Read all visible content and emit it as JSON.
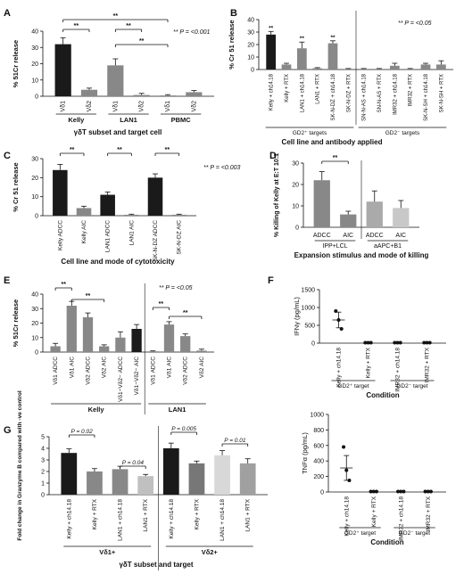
{
  "chart_data": [
    {
      "panel": "A",
      "type": "bar",
      "ylabel": "% 51Cr release",
      "ylim": [
        0,
        40
      ],
      "yticks": [
        "0",
        "10",
        "20",
        "30",
        "40"
      ],
      "categories": [
        "Vδ1",
        "Vδ2",
        "Vδ1",
        "Vδ2",
        "Vδ1",
        "Vδ2"
      ],
      "values": [
        32,
        4,
        19,
        0.8,
        0.5,
        2.5
      ],
      "errors": [
        4,
        1,
        4,
        1,
        0.5,
        1
      ],
      "colors": [
        "#1a1a1a",
        "#888888",
        "#888888",
        "#888888",
        "#888888",
        "#888888"
      ],
      "groups": [
        "Kelly",
        "LAN1",
        "PBMC"
      ],
      "sig": "**",
      "pnote": "** P = <0.001",
      "xlabel": "γδT subset and target cell"
    },
    {
      "panel": "B",
      "type": "bar",
      "ylabel": "% Cr 51 release",
      "ylim": [
        0,
        40
      ],
      "yticks": [
        "0",
        "10",
        "20",
        "30",
        "40"
      ],
      "categories": [
        "Kelly + ch14.18",
        "Kelly + RTX",
        "LAN1 + ch14.18",
        "LAN1 + RTX",
        "SK-N-DZ + ch14.18",
        "SK-N-DZ + RTX",
        "SN-N-AS + ch14.18",
        "SN-N-AS + RTX",
        "IMR32 + ch14.18",
        "IMR32 + RTX",
        "SK-N-SH + ch14.18",
        "SK-N-SH + RTX"
      ],
      "values": [
        28,
        4,
        17,
        1,
        21,
        0.5,
        0.5,
        0.5,
        3,
        0.5,
        4,
        4
      ],
      "errors": [
        2.5,
        1,
        5,
        0.5,
        2,
        0.3,
        0.3,
        0.3,
        2,
        0.3,
        1,
        3
      ],
      "colors": [
        "#1a1a1a",
        "#888888",
        "#888888",
        "#888888",
        "#888888",
        "#888888",
        "#888888",
        "#888888",
        "#888888",
        "#888888",
        "#888888",
        "#888888"
      ],
      "groups": [
        "GD2⁺ targets",
        "GD2⁻ targets"
      ],
      "sig": "**",
      "pnote": "** P = <0.05",
      "xlabel": "Cell line and antibody applied"
    },
    {
      "panel": "C",
      "type": "bar",
      "ylabel": "% Cr 51 release",
      "ylim": [
        0,
        30
      ],
      "yticks": [
        "0",
        "10",
        "20",
        "30"
      ],
      "categories": [
        "Kelly ADCC",
        "Kelly AIC",
        "LAN1 ADCC",
        "LAN1 AIC",
        "SK-N-DZ ADCC",
        "SK-N-DZ AIC"
      ],
      "values": [
        24,
        4,
        11,
        0.5,
        20,
        0.5
      ],
      "errors": [
        3,
        1,
        1.5,
        0.3,
        2,
        0.3
      ],
      "colors": [
        "#1a1a1a",
        "#888888",
        "#1a1a1a",
        "#888888",
        "#1a1a1a",
        "#888888"
      ],
      "sig": "**",
      "pnote": "** P = <0.003",
      "xlabel": "Cell line and mode of cytotoxicity"
    },
    {
      "panel": "D",
      "type": "bar",
      "ylabel": "% Killing of Kelly at E:T 10:1",
      "ylim": [
        0,
        30
      ],
      "yticks": [
        "0",
        "10",
        "20",
        "30"
      ],
      "categories": [
        "ADCC",
        "AIC",
        "ADCC",
        "AIC"
      ],
      "values": [
        22,
        6,
        12,
        9
      ],
      "errors": [
        4,
        1.5,
        5,
        3.5
      ],
      "colors": [
        "#888888",
        "#888888",
        "#aaaaaa",
        "#c8c8c8"
      ],
      "groups": [
        "IPP+LCL",
        "aAPC+B1"
      ],
      "sig": "**",
      "xlabel": "Expansion stimulus and mode of killing"
    },
    {
      "panel": "E",
      "type": "bar",
      "ylabel": "% 51Cr release",
      "ylim": [
        0,
        40
      ],
      "yticks": [
        "0",
        "10",
        "20",
        "30",
        "40"
      ],
      "categories": [
        "Vδ1 ADCC",
        "Vδ1 AIC",
        "Vδ2 ADCC",
        "Vδ2 AIC",
        "Vδ1−Vδ2− ADCC",
        "Vδ1−Vδ2− AIC",
        "Vδ1 ADCC",
        "Vδ1 AIC",
        "Vδ2 ADCC",
        "Vδ2 AIC"
      ],
      "values": [
        4,
        32,
        24,
        4,
        10,
        16,
        0.5,
        19,
        11,
        1
      ],
      "errors": [
        2,
        3,
        3,
        1,
        4,
        3,
        0.3,
        2,
        1.5,
        1
      ],
      "colors": [
        "#888888",
        "#888888",
        "#888888",
        "#888888",
        "#888888",
        "#1a1a1a",
        "#888888",
        "#888888",
        "#888888",
        "#888888"
      ],
      "groups": [
        "Kelly",
        "LAN1"
      ],
      "sig": "**",
      "pnote": "** P = <0.05"
    },
    {
      "panel": "F1",
      "type": "scatter",
      "ylabel": "IFNγ (pg/mL)",
      "ylim": [
        0,
        1500
      ],
      "yticks": [
        "0",
        "500",
        "1000",
        "1500"
      ],
      "categories": [
        "Kelly + ch14.18",
        "Kelly + RTX",
        "IMR32 + ch14.18",
        "IMR32 + RTX"
      ],
      "points": [
        [
          900,
          650,
          400
        ],
        [
          0,
          0,
          0
        ],
        [
          0,
          0,
          0
        ],
        [
          0,
          0,
          0
        ]
      ],
      "means": [
        650,
        0,
        0,
        0
      ],
      "errors": [
        220,
        0,
        0,
        0
      ],
      "groups": [
        "GD2⁺ target",
        "GD2⁻ target"
      ],
      "xlabel": "Condition"
    },
    {
      "panel": "F2",
      "type": "scatter",
      "ylabel": "TNFα (pg/mL)",
      "ylim": [
        0,
        1000
      ],
      "yticks": [
        "0",
        "200",
        "400",
        "600",
        "800",
        "1000"
      ],
      "categories": [
        "Kelly + ch14.18",
        "Kelly + RTX",
        "IMR32 + ch14.18",
        "IMR32 + RTX"
      ],
      "points": [
        [
          580,
          280,
          150
        ],
        [
          0,
          0,
          0
        ],
        [
          0,
          0,
          0
        ],
        [
          0,
          0,
          0
        ]
      ],
      "means": [
        310,
        0,
        0,
        0
      ],
      "errors": [
        160,
        0,
        0,
        0
      ],
      "groups": [
        "GD2⁺ target",
        "GD2⁻ target"
      ],
      "xlabel": "Condition"
    },
    {
      "panel": "G",
      "type": "bar",
      "ylabel": "Fold change in Granzyme B compared with -ve control",
      "ylim": [
        0,
        5
      ],
      "yticks": [
        "0",
        "1",
        "2",
        "3",
        "4",
        "5"
      ],
      "categories": [
        "Kelly + ch14.18",
        "Kelly + RTX",
        "LAN1 + ch14.18",
        "LAN1 + RTX",
        "Kelly + ch14.18",
        "Kelly + RTX",
        "LAN1 + ch14.18",
        "LAN1 + RTX"
      ],
      "values": [
        3.6,
        2.0,
        2.2,
        1.6,
        4.0,
        2.7,
        3.4,
        2.7
      ],
      "errors": [
        0.35,
        0.25,
        0.25,
        0.15,
        0.45,
        0.2,
        0.4,
        0.4
      ],
      "colors": [
        "#1a1a1a",
        "#888888",
        "#888888",
        "#c0c0c0",
        "#1a1a1a",
        "#777777",
        "#d8d8d8",
        "#a0a0a0"
      ],
      "groups": [
        "Vδ1+",
        "Vδ2+"
      ],
      "pvalues": [
        "P = 0.02",
        "P = 0.04",
        "P = 0.005",
        "P = 0.01"
      ],
      "xlabel": "γδT subset and target"
    }
  ]
}
